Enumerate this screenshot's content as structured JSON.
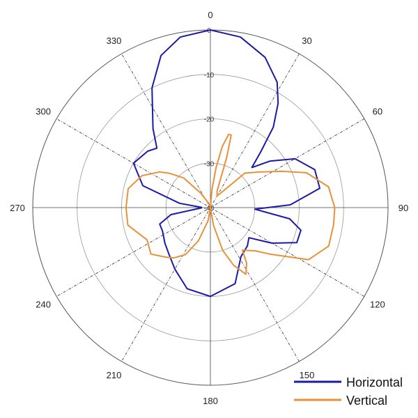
{
  "chart_data": {
    "type": "polar-line",
    "title": "",
    "angle_ticks": [
      "0",
      "30",
      "60",
      "90",
      "120",
      "150",
      "180",
      "210",
      "240",
      "270",
      "300",
      "330"
    ],
    "radial_ticks": [
      "0",
      "-10",
      "-20",
      "-30",
      "-40"
    ],
    "radial_range": [
      -40,
      0
    ],
    "grid": true,
    "legend_position": "bottom-right",
    "series": [
      {
        "name": "Horizontal",
        "color": "#1a1aa6",
        "points": [
          [
            0,
            0
          ],
          [
            10,
            -1
          ],
          [
            20,
            -4
          ],
          [
            28,
            -8
          ],
          [
            33,
            -12
          ],
          [
            38,
            -17
          ],
          [
            42,
            -23
          ],
          [
            46,
            -27
          ],
          [
            52,
            -23
          ],
          [
            60,
            -18
          ],
          [
            70,
            -15
          ],
          [
            80,
            -15
          ],
          [
            88,
            -22
          ],
          [
            92,
            -30
          ],
          [
            98,
            -22
          ],
          [
            104,
            -19
          ],
          [
            112,
            -19
          ],
          [
            120,
            -24
          ],
          [
            128,
            -29
          ],
          [
            136,
            -28
          ],
          [
            148,
            -27
          ],
          [
            162,
            -22
          ],
          [
            180,
            -20
          ],
          [
            196,
            -21
          ],
          [
            210,
            -24
          ],
          [
            222,
            -26
          ],
          [
            232,
            -27
          ],
          [
            244,
            -28
          ],
          [
            252,
            -28
          ],
          [
            260,
            -31
          ],
          [
            268,
            -38
          ],
          [
            272,
            -38
          ],
          [
            278,
            -33
          ],
          [
            288,
            -24
          ],
          [
            300,
            -20
          ],
          [
            312,
            -21
          ],
          [
            318,
            -22
          ],
          [
            324,
            -18
          ],
          [
            334,
            -10
          ],
          [
            342,
            -4
          ],
          [
            350,
            -1
          ],
          [
            360,
            0
          ]
        ]
      },
      {
        "name": "Vertical",
        "color": "#e8913a",
        "points": [
          [
            0,
            -40
          ],
          [
            5,
            -36
          ],
          [
            8,
            -31
          ],
          [
            11,
            -26
          ],
          [
            14,
            -23
          ],
          [
            16,
            -23
          ],
          [
            18,
            -28
          ],
          [
            22,
            -36
          ],
          [
            30,
            -37
          ],
          [
            45,
            -29
          ],
          [
            55,
            -26
          ],
          [
            63,
            -22
          ],
          [
            70,
            -17
          ],
          [
            80,
            -13
          ],
          [
            90,
            -12
          ],
          [
            98,
            -12
          ],
          [
            108,
            -12
          ],
          [
            118,
            -15
          ],
          [
            128,
            -23
          ],
          [
            134,
            -26
          ],
          [
            138,
            -27
          ],
          [
            143,
            -28
          ],
          [
            147,
            -25
          ],
          [
            152,
            -23
          ],
          [
            158,
            -26
          ],
          [
            164,
            -30
          ],
          [
            170,
            -36
          ],
          [
            180,
            -40
          ],
          [
            190,
            -37
          ],
          [
            200,
            -32
          ],
          [
            208,
            -28
          ],
          [
            216,
            -26
          ],
          [
            222,
            -25
          ],
          [
            232,
            -23
          ],
          [
            243,
            -24
          ],
          [
            258,
            -21
          ],
          [
            270,
            -21
          ],
          [
            283,
            -21
          ],
          [
            295,
            -23
          ],
          [
            305,
            -26
          ],
          [
            310,
            -28
          ],
          [
            318,
            -31
          ],
          [
            326,
            -36
          ],
          [
            340,
            -39
          ],
          [
            360,
            -40
          ]
        ]
      }
    ]
  }
}
